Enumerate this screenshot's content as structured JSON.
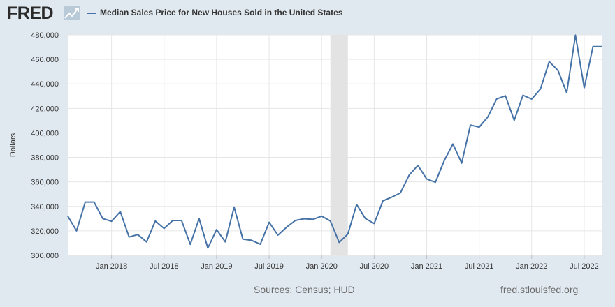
{
  "header": {
    "logo_text": "FRED",
    "logo_icon": "fred-chart-icon",
    "legend_label": "Median Sales Price for New Houses Sold in the United States"
  },
  "footer": {
    "sources": "Sources: Census; HUD",
    "site": "fred.stlouisfed.org"
  },
  "colors": {
    "background": "#e1e9f0",
    "plot_background": "#ffffff",
    "series": "#4572a7",
    "recession": "#e3e3e3",
    "grid": "#e6e6e6"
  },
  "chart_data": {
    "type": "line",
    "title": "",
    "xlabel": "",
    "ylabel": "Dollars",
    "ylim": [
      300000,
      480000
    ],
    "yticks": [
      300000,
      320000,
      340000,
      360000,
      380000,
      400000,
      420000,
      440000,
      460000,
      480000
    ],
    "ytick_labels": [
      "300,000",
      "320,000",
      "340,000",
      "360,000",
      "380,000",
      "400,000",
      "420,000",
      "440,000",
      "460,000",
      "480,000"
    ],
    "xlim": [
      "2017-08",
      "2022-09"
    ],
    "xticks": [
      "2018-01",
      "2018-07",
      "2019-01",
      "2019-07",
      "2020-01",
      "2020-07",
      "2021-01",
      "2021-07",
      "2022-01",
      "2022-07"
    ],
    "xtick_labels": [
      "Jan 2018",
      "Jul 2018",
      "Jan 2019",
      "Jul 2019",
      "Jan 2020",
      "Jul 2020",
      "Jan 2021",
      "Jul 2021",
      "Jan 2022",
      "Jul 2022"
    ],
    "grid": true,
    "legend": "top-left",
    "recession": {
      "start": "2020-02",
      "end": "2020-04"
    },
    "series": [
      {
        "name": "Median Sales Price for New Houses Sold in the United States",
        "x": [
          "2017-08",
          "2017-09",
          "2017-10",
          "2017-11",
          "2017-12",
          "2018-01",
          "2018-02",
          "2018-03",
          "2018-04",
          "2018-05",
          "2018-06",
          "2018-07",
          "2018-08",
          "2018-09",
          "2018-10",
          "2018-11",
          "2018-12",
          "2019-01",
          "2019-02",
          "2019-03",
          "2019-04",
          "2019-05",
          "2019-06",
          "2019-07",
          "2019-08",
          "2019-09",
          "2019-10",
          "2019-11",
          "2019-12",
          "2020-01",
          "2020-02",
          "2020-03",
          "2020-04",
          "2020-05",
          "2020-06",
          "2020-07",
          "2020-08",
          "2020-09",
          "2020-10",
          "2020-11",
          "2020-12",
          "2021-01",
          "2021-02",
          "2021-03",
          "2021-04",
          "2021-05",
          "2021-06",
          "2021-07",
          "2021-08",
          "2021-09",
          "2021-10",
          "2021-11",
          "2021-12",
          "2022-01",
          "2022-02",
          "2022-03",
          "2022-04",
          "2022-05",
          "2022-06",
          "2022-07",
          "2022-08",
          "2022-09"
        ],
        "values": [
          332000,
          320000,
          343500,
          343500,
          330000,
          327800,
          335800,
          315000,
          317000,
          311000,
          328000,
          322000,
          328500,
          328500,
          309000,
          330000,
          306000,
          321000,
          311000,
          339500,
          313200,
          312300,
          309100,
          327000,
          316500,
          323000,
          328500,
          329900,
          329400,
          332000,
          328000,
          310600,
          317500,
          341600,
          330000,
          326000,
          344500,
          347500,
          351000,
          365600,
          373500,
          362400,
          359700,
          377300,
          390900,
          375300,
          406400,
          404700,
          413200,
          427700,
          430300,
          410300,
          430700,
          427600,
          435800,
          458200,
          451000,
          432700,
          479800,
          436800,
          470500,
          470500
        ]
      }
    ]
  }
}
